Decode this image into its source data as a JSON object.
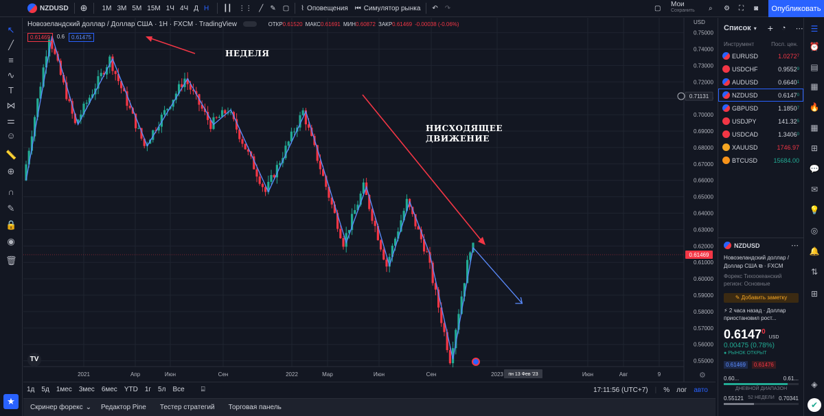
{
  "toolbar": {
    "symbol": "NZDUSD",
    "timeframes": [
      "1М",
      "3М",
      "5М",
      "15М",
      "1Ч",
      "4Ч",
      "Д",
      "Н"
    ],
    "active_timeframe": "Н",
    "alerts_label": "Оповещения",
    "simulator_label": "Симулятор рынка",
    "mine_label": "Мои",
    "saved_label": "Сохранить",
    "publish_label": "Опубликовать"
  },
  "legend": {
    "title": "Новозеландский доллар / Доллар США · 1Н · FXCM · TradingView",
    "ohlc": [
      {
        "k": "ОТКР",
        "v": "0.61520"
      },
      {
        "k": "МАКС",
        "v": "0.61691"
      },
      {
        "k": "МИН",
        "v": "0.60872"
      },
      {
        "k": "ЗАКР",
        "v": "0.61469"
      },
      {
        "k": "",
        "v": "-0.00038 (-0.06%)"
      }
    ],
    "price_tag_sell": "0.61469",
    "spread": "0.6",
    "price_tag_buy": "0.61475"
  },
  "annotations": {
    "week": "НЕДЕЛЯ",
    "downtrend_line1": "НИСХОДЯЩЕЕ",
    "downtrend_line2": "ДВИЖЕНИЕ"
  },
  "chart_data": {
    "type": "candlestick",
    "currency": "USD",
    "y_ticks": [
      "0.75000",
      "0.74000",
      "0.73000",
      "0.72000",
      "0.71000",
      "0.70000",
      "0.69000",
      "0.68000",
      "0.67000",
      "0.66000",
      "0.65000",
      "0.64000",
      "0.63000",
      "0.62000",
      "0.61000",
      "0.60000",
      "0.59000",
      "0.58000",
      "0.57000",
      "0.56000",
      "0.55000"
    ],
    "ylim": [
      0.5465,
      0.7515
    ],
    "x_ticks": [
      "2021",
      "Апр",
      "Июн",
      "Сен",
      "2022",
      "Мар",
      "Июн",
      "Сен",
      "2023",
      "Июн",
      "Авг",
      "9"
    ],
    "crosshair_date": "пн 13 Фев '23",
    "last_price": "0.61469",
    "cross_price": "0.71131",
    "zigzag": [
      [
        0,
        0.66
      ],
      [
        9,
        0.748
      ],
      [
        18,
        0.694
      ],
      [
        30,
        0.734
      ],
      [
        42,
        0.681
      ],
      [
        56,
        0.722
      ],
      [
        65,
        0.694
      ],
      [
        71,
        0.703
      ],
      [
        84,
        0.653
      ],
      [
        97,
        0.702
      ],
      [
        111,
        0.622
      ],
      [
        118,
        0.656
      ],
      [
        126,
        0.608
      ],
      [
        133,
        0.647
      ],
      [
        140,
        0.615
      ],
      [
        148,
        0.551
      ],
      [
        155,
        0.619
      ]
    ],
    "projection": [
      [
        155,
        0.619
      ],
      [
        172,
        0.585
      ]
    ],
    "candles_count": 160
  },
  "rangebar": {
    "ranges": [
      "1д",
      "5д",
      "1мес",
      "3мес",
      "6мес",
      "YTD",
      "1г",
      "5л",
      "Все"
    ],
    "time": "17:11:56 (UTC+7)",
    "percent": "%",
    "log": "лог",
    "auto": "авто"
  },
  "panels": [
    "Скринер форекс",
    "Редактор Pine",
    "Тестер стратегий",
    "Торговая панель"
  ],
  "watchlist": {
    "title": "Список",
    "col_instrument": "Инструмент",
    "col_price": "Посл. цен.",
    "items": [
      {
        "symbol": "EURUSD",
        "price": "1.0272",
        "sup": "7",
        "color": "#f23645"
      },
      {
        "symbol": "USDCHF",
        "price": "0.9552",
        "sup": "9",
        "color": "#d1d4dc"
      },
      {
        "symbol": "AUDUSD",
        "price": "0.6640",
        "sup": "1",
        "color": "#d1d4dc"
      },
      {
        "symbol": "NZDUSD",
        "price": "0.6147",
        "sup": "0",
        "color": "#d1d4dc"
      },
      {
        "symbol": "GBPUSD",
        "price": "1.1850",
        "sup": "7",
        "color": "#d1d4dc"
      },
      {
        "symbol": "USDJPY",
        "price": "141.32",
        "sup": "5",
        "color": "#d1d4dc"
      },
      {
        "symbol": "USDCAD",
        "price": "1.3406",
        "sup": "0",
        "color": "#d1d4dc"
      },
      {
        "symbol": "XAUUSD",
        "price": "1746.97",
        "sup": "",
        "color": "#f23645"
      },
      {
        "symbol": "BTCUSD",
        "price": "15684.00",
        "sup": "",
        "color": "#22ab94"
      }
    ]
  },
  "details": {
    "symbol": "NZDUSD",
    "name": "Новозеландский доллар / Доллар США",
    "exchange": "FXCM",
    "category": "Форекс Тихоокеанский регион: Основные",
    "add_note": "Добавить заметку",
    "news": "2 часа назад · Доллар приостановил рост...",
    "price": "0.6147",
    "price_sup": "0",
    "price_currency": "USD",
    "change": "0.00475 (0.78%)",
    "market_status": "РЫНОК ОТКРЫТ",
    "bid": "0.61469",
    "ask": "0.61476",
    "day_low": "0.60...",
    "day_high": "0.61...",
    "day_label": "ДНЕВНОЙ ДИАПАЗОН",
    "wk_low": "0.55121",
    "wk_high": "0.70341",
    "wk_label": "52 НЕДЕЛИ"
  }
}
